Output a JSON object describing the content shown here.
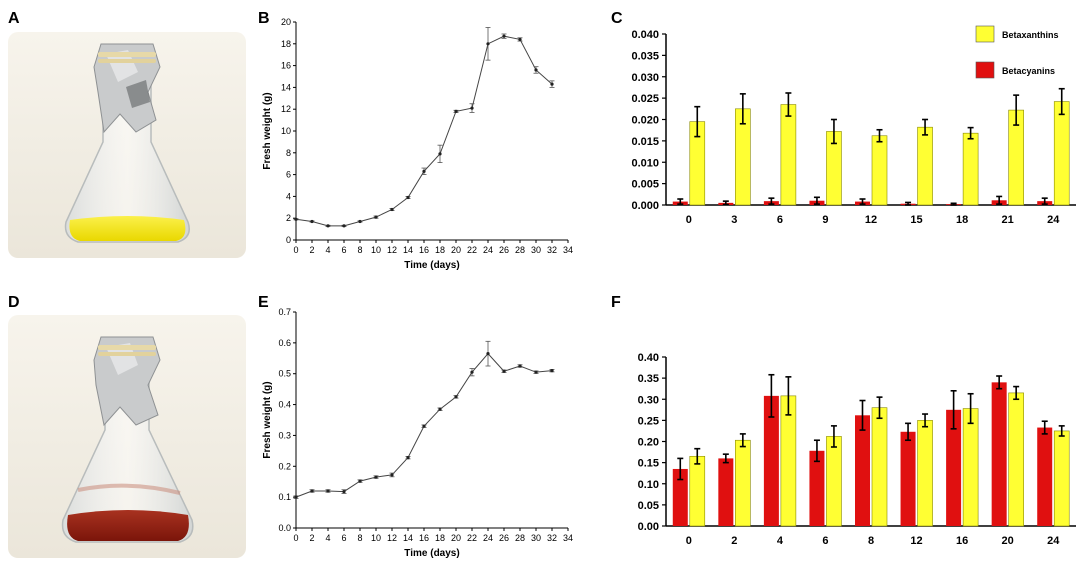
{
  "panels": {
    "a": "A",
    "b": "B",
    "c": "C",
    "d": "D",
    "e": "E",
    "f": "F"
  },
  "photos": {
    "a": {
      "description": "yellow-culture-flask",
      "liquid_color": "#f2e20a"
    },
    "d": {
      "description": "red-culture-flask",
      "liquid_color": "#8f1d10"
    }
  },
  "chart_data": [
    {
      "id": "B",
      "type": "line",
      "title": "",
      "xlabel": "Time (days)",
      "ylabel": "Fresh weight  (g)",
      "xlim": [
        0,
        34
      ],
      "ylim": [
        0,
        20
      ],
      "xticks": [
        0,
        2,
        4,
        6,
        8,
        10,
        12,
        14,
        16,
        18,
        20,
        22,
        24,
        26,
        28,
        30,
        32,
        34
      ],
      "yticks": [
        0,
        2,
        4,
        6,
        8,
        10,
        12,
        14,
        16,
        18,
        20
      ],
      "x": [
        0,
        2,
        4,
        6,
        8,
        10,
        12,
        14,
        16,
        18,
        20,
        22,
        24,
        26,
        28,
        30,
        32
      ],
      "y": [
        1.9,
        1.7,
        1.3,
        1.3,
        1.7,
        2.1,
        2.8,
        3.9,
        6.3,
        7.9,
        11.8,
        12.1,
        18.0,
        18.7,
        18.4,
        15.6,
        14.3
      ],
      "err": [
        0.05,
        0.05,
        0.05,
        0.05,
        0.05,
        0.1,
        0.1,
        0.1,
        0.3,
        0.8,
        0.1,
        0.4,
        1.5,
        0.2,
        0.15,
        0.3,
        0.3
      ],
      "color": "#444444"
    },
    {
      "id": "C",
      "type": "bar",
      "title": "",
      "xlabel": "",
      "ylabel": "",
      "categories": [
        "0",
        "3",
        "6",
        "9",
        "12",
        "15",
        "18",
        "21",
        "24"
      ],
      "ylim": [
        0,
        0.04
      ],
      "yticks": [
        "0.000",
        "0.005",
        "0.010",
        "0.015",
        "0.020",
        "0.025",
        "0.030",
        "0.035",
        "0.040"
      ],
      "legend_position": "top-right",
      "series": [
        {
          "name": "Betacyanins",
          "color": "#e01010",
          "values": [
            0.0008,
            0.0005,
            0.0009,
            0.001,
            0.0008,
            0.0003,
            0.0002,
            0.0011,
            0.0009
          ],
          "err": [
            0.0006,
            0.0004,
            0.0007,
            0.0008,
            0.0006,
            0.0003,
            0.0002,
            0.0009,
            0.0007
          ]
        },
        {
          "name": "Betaxanthins",
          "color": "#ffff33",
          "values": [
            0.0195,
            0.0225,
            0.0235,
            0.0172,
            0.0162,
            0.0182,
            0.0168,
            0.0222,
            0.0242
          ],
          "err": [
            0.0035,
            0.0035,
            0.0027,
            0.0028,
            0.0014,
            0.0018,
            0.0013,
            0.0035,
            0.003
          ]
        }
      ]
    },
    {
      "id": "E",
      "type": "line",
      "title": "",
      "xlabel": "Time (days)",
      "ylabel": "Fresh weight  (g)",
      "xlim": [
        0,
        34
      ],
      "ylim": [
        0,
        0.7
      ],
      "xticks": [
        0,
        2,
        4,
        6,
        8,
        10,
        12,
        14,
        16,
        18,
        20,
        22,
        24,
        26,
        28,
        30,
        32,
        34
      ],
      "yticks": [
        "0.0",
        "0.1",
        "0.2",
        "0.3",
        "0.4",
        "0.5",
        "0.6",
        "0.7"
      ],
      "x": [
        0,
        2,
        4,
        6,
        8,
        10,
        12,
        14,
        16,
        18,
        20,
        22,
        24,
        26,
        28,
        30,
        32
      ],
      "y": [
        0.1,
        0.12,
        0.12,
        0.118,
        0.152,
        0.165,
        0.172,
        0.228,
        0.33,
        0.385,
        0.425,
        0.505,
        0.565,
        0.508,
        0.525,
        0.505,
        0.51
      ],
      "err": [
        0.004,
        0.004,
        0.004,
        0.006,
        0.004,
        0.004,
        0.006,
        0.004,
        0.004,
        0.004,
        0.004,
        0.012,
        0.04,
        0.004,
        0.004,
        0.004,
        0.004
      ],
      "color": "#444444"
    },
    {
      "id": "F",
      "type": "bar",
      "title": "",
      "xlabel": "",
      "ylabel": "",
      "categories": [
        "0",
        "2",
        "4",
        "6",
        "8",
        "12",
        "16",
        "20",
        "24"
      ],
      "ylim": [
        0,
        0.4
      ],
      "yticks": [
        "0.00",
        "0.05",
        "0.10",
        "0.15",
        "0.20",
        "0.25",
        "0.30",
        "0.35",
        "0.40"
      ],
      "series": [
        {
          "name": "Betacyanins",
          "color": "#e01010",
          "values": [
            0.135,
            0.16,
            0.308,
            0.178,
            0.262,
            0.223,
            0.275,
            0.34,
            0.233
          ],
          "err": [
            0.025,
            0.01,
            0.05,
            0.025,
            0.035,
            0.02,
            0.045,
            0.015,
            0.015
          ]
        },
        {
          "name": "Betaxanthins",
          "color": "#ffff33",
          "values": [
            0.165,
            0.203,
            0.308,
            0.212,
            0.28,
            0.25,
            0.278,
            0.315,
            0.225
          ],
          "err": [
            0.018,
            0.015,
            0.045,
            0.025,
            0.025,
            0.015,
            0.035,
            0.015,
            0.012
          ]
        }
      ]
    }
  ]
}
